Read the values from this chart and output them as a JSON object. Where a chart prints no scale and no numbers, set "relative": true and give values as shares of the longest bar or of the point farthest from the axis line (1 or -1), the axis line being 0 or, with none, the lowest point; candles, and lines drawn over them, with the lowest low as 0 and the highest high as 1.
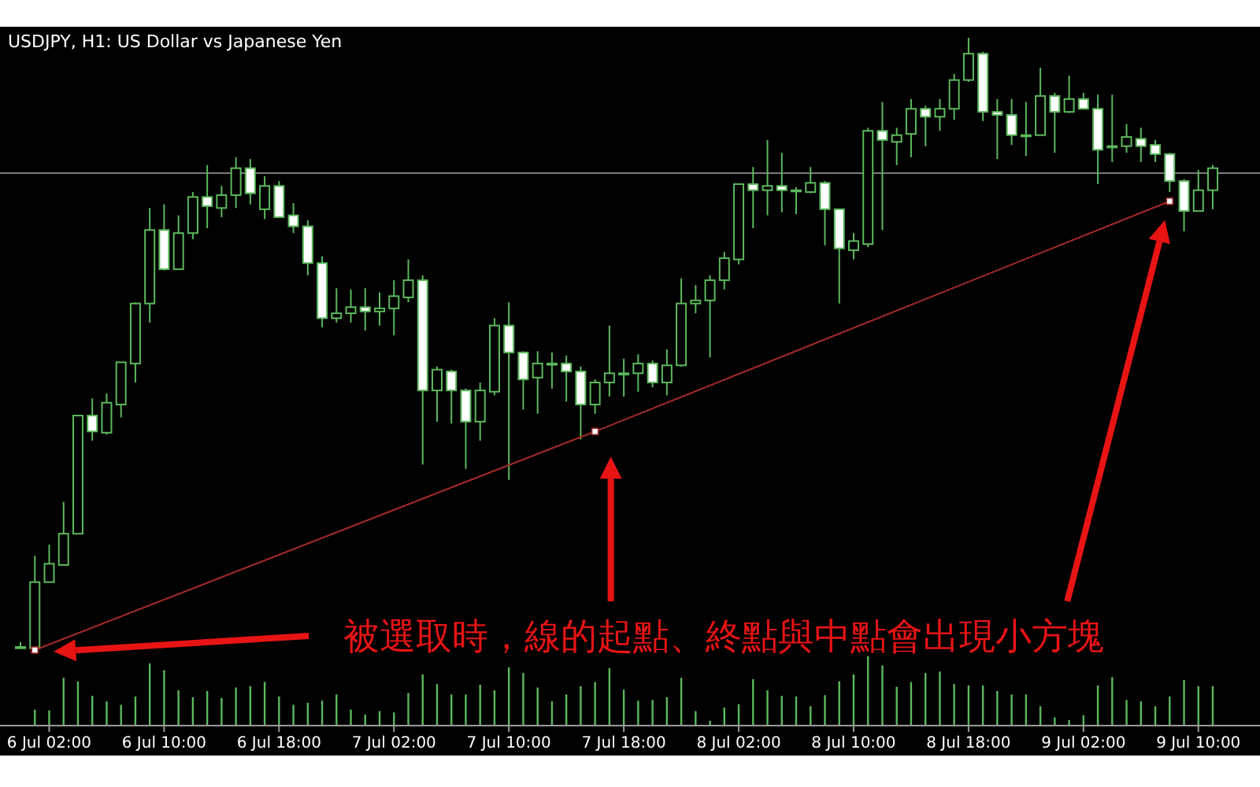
{
  "chart_data": [
    {
      "type": "candlestick",
      "title": "USDJPY, H1:  US Dollar vs Japanese Yen",
      "relative": true,
      "tick_labels": false,
      "categories": [
        null,
        null,
        null,
        null,
        null,
        null,
        null,
        null,
        null,
        null,
        null,
        null,
        null,
        null,
        null,
        null,
        null,
        null,
        null,
        null,
        null,
        null,
        null,
        null,
        null,
        null,
        null,
        null,
        null,
        null,
        null,
        null,
        null,
        null,
        null,
        null,
        null,
        null,
        null,
        null,
        null,
        null,
        null,
        null,
        null,
        null,
        null,
        null,
        null,
        null,
        null,
        null,
        null,
        null,
        null,
        null,
        null,
        null,
        null,
        null,
        null,
        null,
        null,
        null,
        null,
        null,
        null,
        null,
        null,
        null,
        null,
        null,
        null,
        null,
        null,
        null,
        null,
        null,
        null,
        null,
        null,
        null,
        null,
        null
      ],
      "ref_lines": [
        {
          "axis": "y",
          "value": 0.779,
          "color": "#7a7a7a"
        }
      ],
      "annotations": [
        "被選取時，線的起點、終點與中點會出現小方塊"
      ],
      "color": "#5cb85c",
      "ohlc": [
        [
          0.005,
          0.013,
          0.003,
          0.005
        ],
        [
          0.003,
          0.154,
          0,
          0.111
        ],
        [
          0.111,
          0.172,
          0.111,
          0.141
        ],
        [
          0.139,
          0.242,
          0.139,
          0.19
        ],
        [
          0.19,
          0.383,
          0.19,
          0.383
        ],
        [
          0.383,
          0.411,
          0.342,
          0.357
        ],
        [
          0.355,
          0.419,
          0.352,
          0.404
        ],
        [
          0.401,
          0.47,
          0.38,
          0.47
        ],
        [
          0.468,
          0.568,
          0.437,
          0.566
        ],
        [
          0.566,
          0.722,
          0.535,
          0.686
        ],
        [
          0.686,
          0.728,
          0.62,
          0.622
        ],
        [
          0.622,
          0.71,
          0.622,
          0.681
        ],
        [
          0.681,
          0.748,
          0.671,
          0.74
        ],
        [
          0.74,
          0.792,
          0.689,
          0.725
        ],
        [
          0.722,
          0.758,
          0.707,
          0.743
        ],
        [
          0.743,
          0.805,
          0.722,
          0.787
        ],
        [
          0.787,
          0.802,
          0.728,
          0.746
        ],
        [
          0.72,
          0.774,
          0.704,
          0.758
        ],
        [
          0.758,
          0.766,
          0.707,
          0.707
        ],
        [
          0.71,
          0.73,
          0.681,
          0.692
        ],
        [
          0.692,
          0.702,
          0.612,
          0.632
        ],
        [
          0.632,
          0.643,
          0.527,
          0.542
        ],
        [
          0.542,
          0.591,
          0.535,
          0.55
        ],
        [
          0.55,
          0.589,
          0.535,
          0.56
        ],
        [
          0.56,
          0.591,
          0.522,
          0.553
        ],
        [
          0.553,
          0.584,
          0.53,
          0.558
        ],
        [
          0.558,
          0.604,
          0.514,
          0.578
        ],
        [
          0.576,
          0.638,
          0.568,
          0.604
        ],
        [
          0.604,
          0.612,
          0.303,
          0.424
        ],
        [
          0.424,
          0.463,
          0.373,
          0.458
        ],
        [
          0.455,
          0.458,
          0.37,
          0.424
        ],
        [
          0.424,
          0.427,
          0.296,
          0.373
        ],
        [
          0.373,
          0.437,
          0.342,
          0.424
        ],
        [
          0.422,
          0.542,
          0.416,
          0.53
        ],
        [
          0.53,
          0.568,
          0.278,
          0.486
        ],
        [
          0.486,
          0.488,
          0.393,
          0.442
        ],
        [
          0.445,
          0.488,
          0.386,
          0.468
        ],
        [
          0.468,
          0.486,
          0.427,
          0.468
        ],
        [
          0.468,
          0.481,
          0.406,
          0.455
        ],
        [
          0.455,
          0.463,
          0.344,
          0.401
        ],
        [
          0.401,
          0.442,
          0.386,
          0.437
        ],
        [
          0.437,
          0.53,
          0.414,
          0.452
        ],
        [
          0.452,
          0.476,
          0.414,
          0.452
        ],
        [
          0.452,
          0.483,
          0.422,
          0.468
        ],
        [
          0.468,
          0.473,
          0.429,
          0.437
        ],
        [
          0.437,
          0.491,
          0.416,
          0.465
        ],
        [
          0.465,
          0.607,
          0.463,
          0.566
        ],
        [
          0.566,
          0.596,
          0.55,
          0.571
        ],
        [
          0.571,
          0.612,
          0.478,
          0.604
        ],
        [
          0.604,
          0.65,
          0.589,
          0.64
        ],
        [
          0.638,
          0.761,
          0.63,
          0.761
        ],
        [
          0.761,
          0.789,
          0.689,
          0.751
        ],
        [
          0.751,
          0.833,
          0.71,
          0.758
        ],
        [
          0.758,
          0.812,
          0.715,
          0.751
        ],
        [
          0.751,
          0.756,
          0.712,
          0.751
        ],
        [
          0.748,
          0.789,
          0.746,
          0.763
        ],
        [
          0.763,
          0.766,
          0.661,
          0.72
        ],
        [
          0.72,
          0.72,
          0.566,
          0.656
        ],
        [
          0.653,
          0.681,
          0.638,
          0.668
        ],
        [
          0.663,
          0.853,
          0.658,
          0.848
        ],
        [
          0.848,
          0.895,
          0.686,
          0.833
        ],
        [
          0.83,
          0.853,
          0.792,
          0.841
        ],
        [
          0.843,
          0.9,
          0.805,
          0.884
        ],
        [
          0.884,
          0.889,
          0.823,
          0.871
        ],
        [
          0.871,
          0.9,
          0.848,
          0.884
        ],
        [
          0.884,
          0.941,
          0.866,
          0.931
        ],
        [
          0.931,
          1,
          0.928,
          0.974
        ],
        [
          0.974,
          0.977,
          0.864,
          0.879
        ],
        [
          0.879,
          0.9,
          0.802,
          0.874
        ],
        [
          0.874,
          0.9,
          0.825,
          0.841
        ],
        [
          0.841,
          0.895,
          0.807,
          0.841
        ],
        [
          0.841,
          0.951,
          0.841,
          0.905
        ],
        [
          0.905,
          0.91,
          0.812,
          0.879
        ],
        [
          0.879,
          0.938,
          0.877,
          0.9
        ],
        [
          0.9,
          0.91,
          0.884,
          0.884
        ],
        [
          0.884,
          0.907,
          0.761,
          0.817
        ],
        [
          0.823,
          0.907,
          0.797,
          0.823
        ],
        [
          0.823,
          0.859,
          0.812,
          0.838
        ],
        [
          0.835,
          0.853,
          0.797,
          0.823
        ],
        [
          0.825,
          0.833,
          0.797,
          0.81
        ],
        [
          0.81,
          0.812,
          0.748,
          0.766
        ],
        [
          0.766,
          0.769,
          0.684,
          0.717
        ],
        [
          0.717,
          0.784,
          0.717,
          0.751
        ],
        [
          0.751,
          0.792,
          0.72,
          0.787
        ]
      ],
      "series": [
        {
          "type": "line",
          "color": "#a52a2a",
          "marker": "square",
          "values": [
            null,
            0,
            null,
            null,
            null,
            null,
            null,
            null,
            null,
            null,
            null,
            null,
            null,
            null,
            null,
            null,
            null,
            null,
            null,
            null,
            null,
            null,
            null,
            null,
            null,
            null,
            null,
            null,
            null,
            null,
            null,
            null,
            null,
            null,
            null,
            null,
            null,
            null,
            null,
            null,
            0.357,
            null,
            null,
            null,
            null,
            null,
            null,
            null,
            null,
            null,
            null,
            null,
            null,
            null,
            null,
            null,
            null,
            null,
            null,
            null,
            null,
            null,
            null,
            null,
            null,
            null,
            null,
            null,
            null,
            null,
            null,
            null,
            null,
            null,
            null,
            null,
            null,
            null,
            null,
            null,
            0.733,
            null,
            null,
            null
          ]
        }
      ]
    },
    {
      "type": "bar",
      "relative": true,
      "color": "#5cb85c",
      "categories": [
        null,
        null,
        "6 Jul 02:00",
        null,
        null,
        null,
        null,
        null,
        null,
        null,
        "6 Jul 10:00",
        null,
        null,
        null,
        null,
        null,
        null,
        null,
        "6 Jul 18:00",
        null,
        null,
        null,
        null,
        null,
        null,
        null,
        "7 Jul 02:00",
        null,
        null,
        null,
        null,
        null,
        null,
        null,
        "7 Jul 10:00",
        null,
        null,
        null,
        null,
        null,
        null,
        null,
        "7 Jul 18:00",
        null,
        null,
        null,
        null,
        null,
        null,
        null,
        "8 Jul 02:00",
        null,
        null,
        null,
        null,
        null,
        null,
        null,
        "8 Jul 10:00",
        null,
        null,
        null,
        null,
        null,
        null,
        null,
        "8 Jul 18:00",
        null,
        null,
        null,
        null,
        null,
        null,
        null,
        "9 Jul 02:00",
        null,
        null,
        null,
        null,
        null,
        null,
        null,
        "9 Jul 10:00",
        null
      ],
      "values": [
        null,
        0.23,
        0.22,
        0.69,
        0.64,
        0.43,
        0.35,
        0.3,
        0.42,
        0.9,
        0.8,
        0.51,
        0.41,
        0.5,
        0.4,
        0.55,
        0.57,
        0.63,
        0.42,
        0.3,
        0.33,
        0.36,
        0.45,
        0.23,
        0.16,
        0.21,
        0.19,
        0.47,
        0.74,
        0.6,
        0.45,
        0.45,
        0.59,
        0.51,
        0.84,
        0.76,
        0.55,
        0.35,
        0.45,
        0.57,
        0.63,
        0.83,
        0.52,
        0.36,
        0.37,
        0.41,
        0.69,
        0.21,
        0.07,
        0.26,
        0.31,
        0.67,
        0.51,
        0.43,
        0.42,
        0.28,
        0.44,
        0.64,
        0.74,
        1,
        0.87,
        0.56,
        0.63,
        0.76,
        0.78,
        0.6,
        0.58,
        0.58,
        0.5,
        0.45,
        0.45,
        0.28,
        0.12,
        0.08,
        0.15,
        0.58,
        0.7,
        0.37,
        0.35,
        0.28,
        0.42,
        0.66,
        0.57,
        0.57
      ]
    }
  ]
}
